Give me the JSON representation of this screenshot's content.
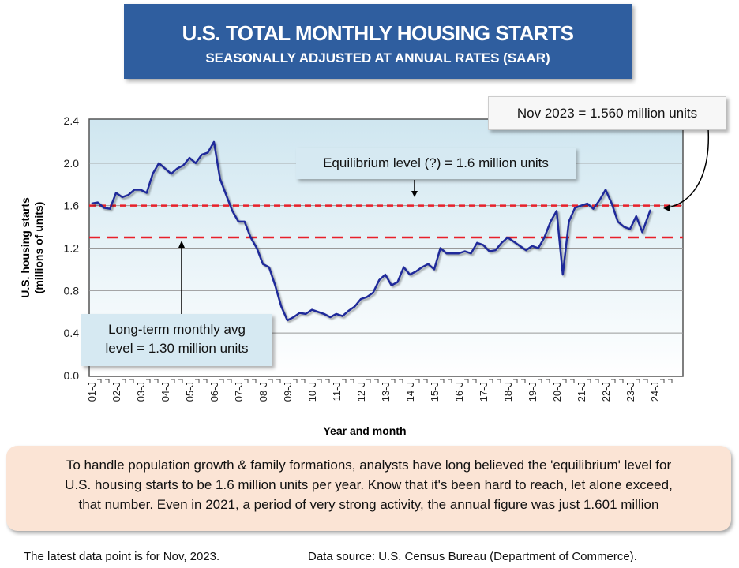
{
  "title": "U.S. TOTAL MONTHLY HOUSING STARTS",
  "subtitle": "SEASONALLY ADJUSTED AT ANNUAL RATES (SAAR)",
  "annotations": {
    "latest": "Nov 2023 = 1.560 million units",
    "equilibrium": "Equilibrium level (?) = 1.6 million units",
    "long_term_line1": "Long-term monthly avg",
    "long_term_line2": "level = 1.30 million units"
  },
  "note": {
    "line1": "To handle population growth & family formations, analysts have long believed the 'equilibrium' level for",
    "line2": "U.S. housing starts to be 1.6 million units per year. Know that it's been hard to reach, let alone exceed,",
    "line3": "that number. Even in 2021, a period of very strong activity, the annual figure was just 1.601 million"
  },
  "footer": {
    "latest": "The latest data point is for Nov, 2023.",
    "source": "Data source: U.S. Census Bureau (Department of Commerce)."
  },
  "colors": {
    "series": "#1F2A9A",
    "reference_lines": "#E8202A",
    "title_bg": "#2F5E9F",
    "note_bg": "#FBE4D5"
  },
  "chart_data": {
    "type": "line",
    "title": "U.S. TOTAL MONTHLY HOUSING STARTS",
    "xlabel": "Year and month",
    "ylabel": "U.S. housing starts (millions of units)",
    "ylim": [
      0,
      2.4
    ],
    "yticks": [
      "0.0",
      "0.4",
      "0.8",
      "1.2",
      "1.6",
      "2.0",
      "2.4"
    ],
    "xticks": [
      "01-J",
      "02-J",
      "03-J",
      "04-J",
      "05-J",
      "06-J",
      "07-J",
      "08-J",
      "09-J",
      "10-J",
      "11-J",
      "12-J",
      "13-J",
      "14-J",
      "15-J",
      "16-J",
      "17-J",
      "18-J",
      "19-J",
      "20-J",
      "21-J",
      "22-J",
      "23-J",
      "24-J"
    ],
    "grid": true,
    "reference_lines": [
      {
        "value": 1.6,
        "style": "dashed"
      },
      {
        "value": 1.3,
        "style": "dashed"
      }
    ],
    "series": [
      {
        "x": [
          "2001-01",
          "2001-04",
          "2001-07",
          "2001-10",
          "2002-01",
          "2002-04",
          "2002-07",
          "2002-10",
          "2003-01",
          "2003-04",
          "2003-07",
          "2003-10",
          "2004-01",
          "2004-04",
          "2004-07",
          "2004-10",
          "2005-01",
          "2005-04",
          "2005-07",
          "2005-10",
          "2006-01",
          "2006-04",
          "2006-07",
          "2006-10",
          "2007-01",
          "2007-04",
          "2007-07",
          "2007-10",
          "2008-01",
          "2008-04",
          "2008-07",
          "2008-10",
          "2009-01",
          "2009-04",
          "2009-07",
          "2009-10",
          "2010-01",
          "2010-04",
          "2010-07",
          "2010-10",
          "2011-01",
          "2011-04",
          "2011-07",
          "2011-10",
          "2012-01",
          "2012-04",
          "2012-07",
          "2012-10",
          "2013-01",
          "2013-04",
          "2013-07",
          "2013-10",
          "2014-01",
          "2014-04",
          "2014-07",
          "2014-10",
          "2015-01",
          "2015-04",
          "2015-07",
          "2015-10",
          "2016-01",
          "2016-04",
          "2016-07",
          "2016-10",
          "2017-01",
          "2017-04",
          "2017-07",
          "2017-10",
          "2018-01",
          "2018-04",
          "2018-07",
          "2018-10",
          "2019-01",
          "2019-04",
          "2019-07",
          "2019-10",
          "2020-01",
          "2020-04",
          "2020-07",
          "2020-10",
          "2021-01",
          "2021-04",
          "2021-07",
          "2021-10",
          "2022-01",
          "2022-04",
          "2022-07",
          "2022-10",
          "2023-01",
          "2023-04",
          "2023-07",
          "2023-11"
        ],
        "values": [
          1.62,
          1.63,
          1.58,
          1.57,
          1.72,
          1.68,
          1.7,
          1.75,
          1.75,
          1.72,
          1.9,
          2.0,
          1.95,
          1.9,
          1.95,
          1.98,
          2.05,
          2.0,
          2.08,
          2.1,
          2.2,
          1.85,
          1.7,
          1.55,
          1.45,
          1.45,
          1.3,
          1.2,
          1.05,
          1.02,
          0.85,
          0.65,
          0.52,
          0.55,
          0.59,
          0.58,
          0.62,
          0.6,
          0.58,
          0.55,
          0.58,
          0.56,
          0.61,
          0.65,
          0.72,
          0.74,
          0.78,
          0.9,
          0.95,
          0.85,
          0.88,
          1.02,
          0.95,
          0.98,
          1.02,
          1.05,
          1.0,
          1.2,
          1.15,
          1.15,
          1.15,
          1.17,
          1.15,
          1.25,
          1.23,
          1.17,
          1.18,
          1.25,
          1.3,
          1.26,
          1.22,
          1.18,
          1.22,
          1.2,
          1.3,
          1.45,
          1.55,
          0.95,
          1.45,
          1.58,
          1.6,
          1.62,
          1.57,
          1.65,
          1.75,
          1.62,
          1.45,
          1.4,
          1.38,
          1.5,
          1.35,
          1.56
        ]
      }
    ]
  }
}
